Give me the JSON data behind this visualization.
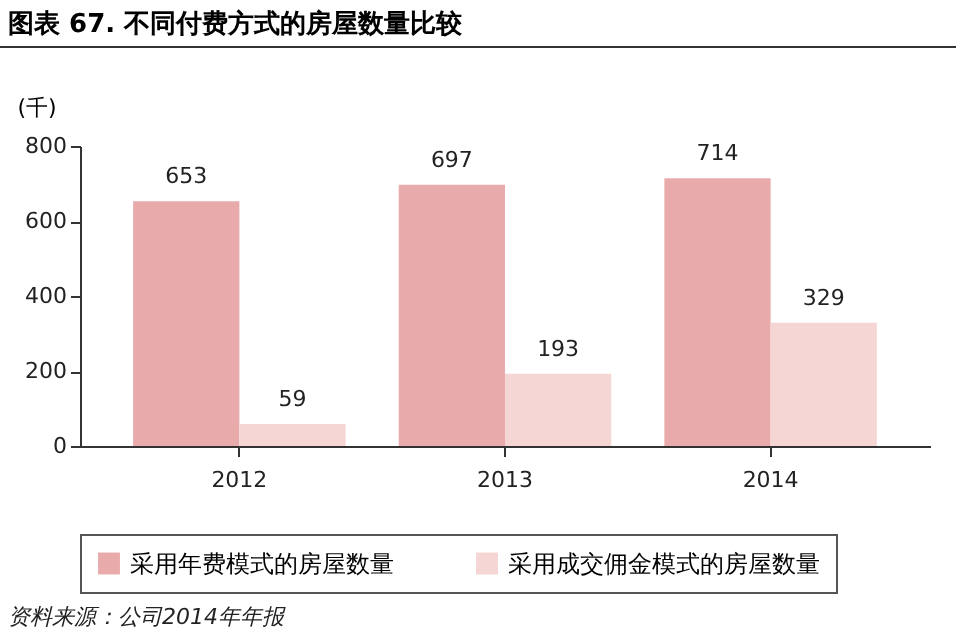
{
  "chart_data": {
    "type": "bar",
    "title": "图表 67. 不同付费方式的房屋数量比较",
    "ylabel": "(千)",
    "categories": [
      "2012",
      "2013",
      "2014"
    ],
    "series": [
      {
        "name": "采用年费模式的房屋数量",
        "color": "#e8aaaa",
        "values": [
          653,
          697,
          714
        ]
      },
      {
        "name": "采用成交佣金模式的房屋数量",
        "color": "#f6d6d4",
        "values": [
          59,
          193,
          329
        ]
      }
    ],
    "ylim": [
      0,
      800
    ],
    "yticks": [
      0,
      200,
      400,
      600,
      800
    ],
    "data_labels": true,
    "legend": "bottom",
    "grid": false,
    "annotations": [
      "资料来源：公司2014年年报"
    ]
  }
}
